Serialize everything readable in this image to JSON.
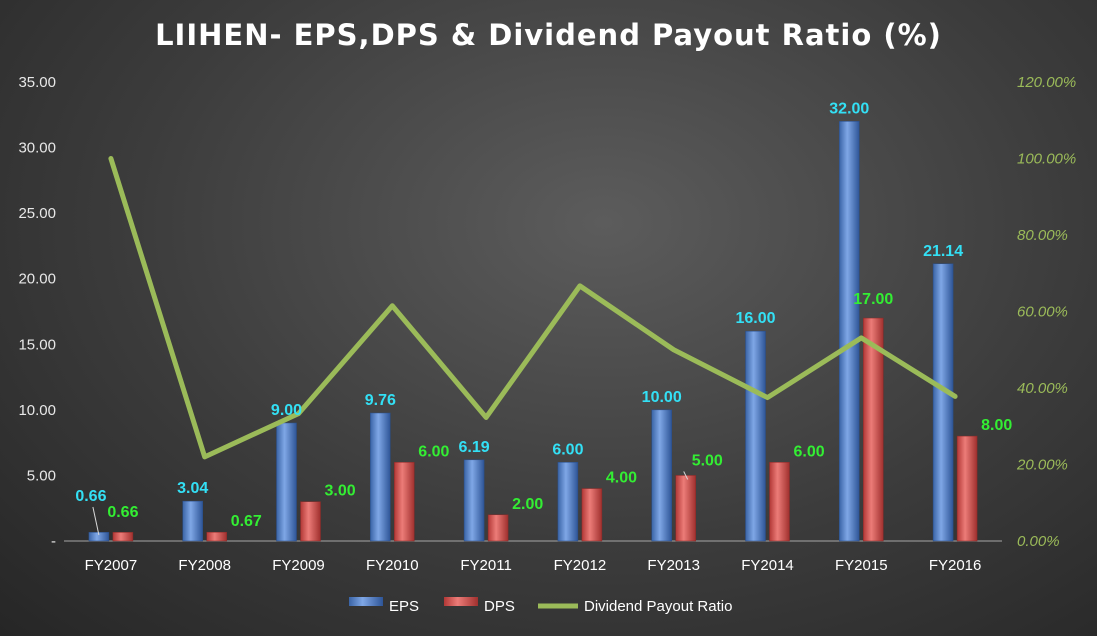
{
  "chart_data": {
    "type": "bar",
    "title": "LIIHEN- EPS,DPS & Dividend Payout Ratio (%)",
    "categories": [
      "FY2007",
      "FY2008",
      "FY2009",
      "FY2010",
      "FY2011",
      "FY2012",
      "FY2013",
      "FY2014",
      "FY2015",
      "FY2016"
    ],
    "series": [
      {
        "name": "EPS",
        "kind": "bar",
        "axis": "left",
        "color": "#4f81bd",
        "values": [
          0.66,
          3.04,
          9.0,
          9.76,
          6.19,
          6.0,
          10.0,
          16.0,
          32.0,
          21.14
        ],
        "labels": [
          "0.66",
          "3.04",
          "9.00",
          "9.76",
          "6.19",
          "6.00",
          "10.00",
          "16.00",
          "32.00",
          "21.14"
        ]
      },
      {
        "name": "DPS",
        "kind": "bar",
        "axis": "left",
        "color": "#c0504d",
        "values": [
          0.66,
          0.67,
          3.0,
          6.0,
          2.0,
          4.0,
          5.0,
          6.0,
          17.0,
          8.0
        ],
        "labels": [
          "0.66",
          "0.67",
          "3.00",
          "6.00",
          "2.00",
          "4.00",
          "5.00",
          "6.00",
          "17.00",
          "8.00"
        ]
      },
      {
        "name": "Dividend Payout Ratio",
        "kind": "line",
        "axis": "right",
        "color": "#9bbb59",
        "values": [
          100.0,
          22.0,
          33.3,
          61.5,
          32.3,
          66.7,
          50.0,
          37.5,
          53.1,
          37.8
        ]
      }
    ],
    "y_left": {
      "ylim": [
        0,
        35
      ],
      "ticks": [
        "-",
        "5.00",
        "10.00",
        "15.00",
        "20.00",
        "25.00",
        "30.00",
        "35.00"
      ]
    },
    "y_right": {
      "ylim": [
        0,
        120
      ],
      "ticks": [
        "0.00%",
        "20.00%",
        "40.00%",
        "60.00%",
        "80.00%",
        "100.00%",
        "120.00%"
      ]
    },
    "legend": {
      "position": "bottom",
      "entries": [
        "EPS",
        "DPS",
        "Dividend Payout Ratio"
      ]
    },
    "grid": false
  }
}
